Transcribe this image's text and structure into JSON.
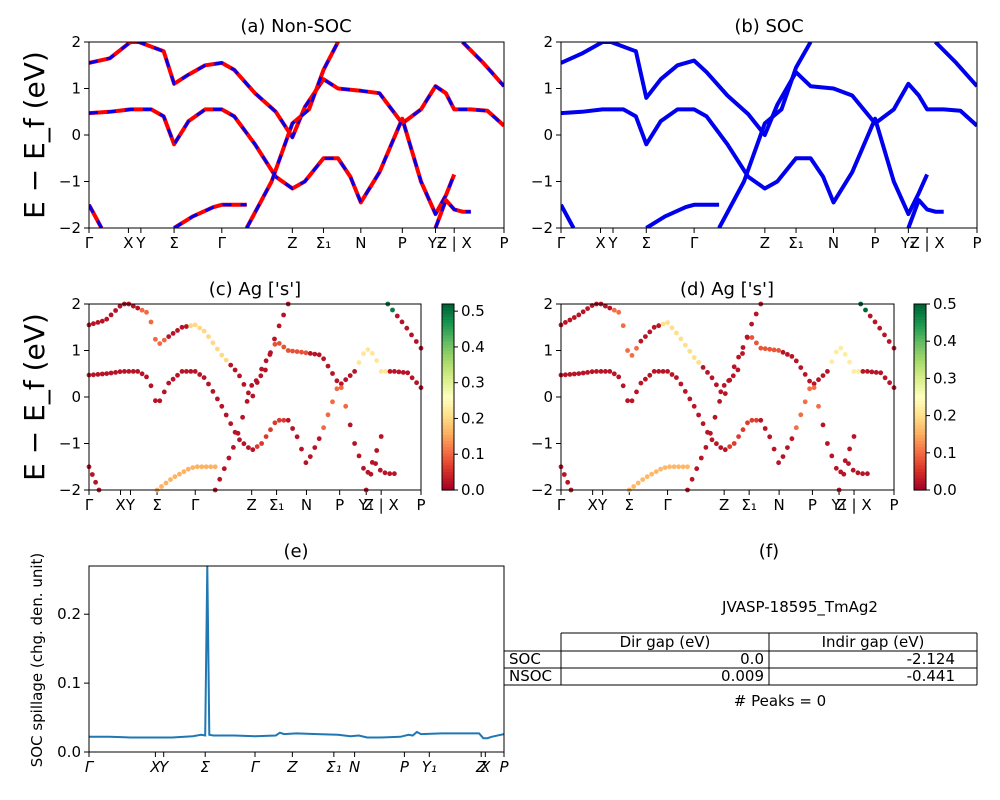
{
  "figure_id": "JVASP-18595_TmAg2",
  "ylabel_band": "E − E_f (eV)",
  "colors": {
    "nonsoc_line": "#ff0000",
    "soc_line": "#0000ee",
    "spillage_line": "#1f77b4",
    "cmap": [
      "#a50026",
      "#d73027",
      "#f46d43",
      "#fdae61",
      "#fee08b",
      "#ffffbf",
      "#d9ef8b",
      "#a6d96a",
      "#66bd63",
      "#1a9850",
      "#006837"
    ]
  },
  "kpath_labels": [
    "Γ",
    "X",
    "Y",
    "Σ",
    "Γ",
    "Z",
    "Σ₁",
    "N",
    "P",
    "Y₁",
    "Z | X",
    "P"
  ],
  "kpath_positions": [
    0,
    0.095,
    0.125,
    0.205,
    0.32,
    0.49,
    0.565,
    0.655,
    0.755,
    0.835,
    0.88,
    1.0
  ],
  "spillage_labels": [
    "Γ",
    "X",
    "Y",
    "Σ",
    "Γ",
    "Z",
    "Σ₁",
    "N",
    "P",
    "Y₁",
    "Z",
    "X",
    "P"
  ],
  "spillage_label_positions": [
    0,
    0.16,
    0.18,
    0.28,
    0.4,
    0.49,
    0.59,
    0.64,
    0.76,
    0.82,
    0.945,
    0.955,
    1.0
  ],
  "chart_data": [
    {
      "id": "a",
      "type": "line",
      "title": "(a) Non-SOC",
      "xlabel": "",
      "ylabel": "E − E_f (eV)",
      "ylim": [
        -2,
        2
      ],
      "yticks": [
        -2,
        -1,
        0,
        1,
        2
      ],
      "note": "Band structure; red solid (spin up) with blue dashed overlay (spin down)",
      "series": [
        {
          "name": "band1",
          "points": [
            [
              0,
              1.55
            ],
            [
              0.05,
              1.65
            ],
            [
              0.1,
              2.0
            ],
            [
              0.12,
              2.0
            ],
            [
              0.18,
              1.8
            ],
            [
              0.205,
              1.1
            ],
            [
              0.24,
              1.3
            ],
            [
              0.28,
              1.5
            ],
            [
              0.32,
              1.55
            ],
            [
              0.35,
              1.4
            ],
            [
              0.4,
              0.9
            ],
            [
              0.45,
              0.5
            ],
            [
              0.49,
              -0.05
            ],
            [
              0.52,
              0.6
            ],
            [
              0.565,
              1.2
            ],
            [
              0.6,
              1.0
            ],
            [
              0.655,
              0.95
            ],
            [
              0.7,
              0.9
            ],
            [
              0.755,
              0.25
            ],
            [
              0.8,
              0.55
            ],
            [
              0.835,
              1.05
            ],
            [
              0.86,
              0.9
            ],
            [
              0.88,
              0.55
            ],
            [
              0.92,
              0.55
            ],
            [
              0.96,
              0.52
            ],
            [
              1.0,
              0.2
            ]
          ]
        },
        {
          "name": "band2",
          "points": [
            [
              0,
              0.47
            ],
            [
              0.05,
              0.5
            ],
            [
              0.1,
              0.55
            ],
            [
              0.15,
              0.55
            ],
            [
              0.18,
              0.4
            ],
            [
              0.205,
              -0.2
            ],
            [
              0.24,
              0.3
            ],
            [
              0.28,
              0.55
            ],
            [
              0.32,
              0.55
            ],
            [
              0.35,
              0.4
            ],
            [
              0.4,
              -0.2
            ],
            [
              0.45,
              -0.9
            ],
            [
              0.49,
              -1.15
            ],
            [
              0.52,
              -1.0
            ],
            [
              0.565,
              -0.5
            ],
            [
              0.6,
              -0.5
            ],
            [
              0.63,
              -0.9
            ],
            [
              0.655,
              -1.45
            ],
            [
              0.7,
              -0.8
            ],
            [
              0.755,
              0.35
            ],
            [
              0.8,
              -1.0
            ],
            [
              0.835,
              -1.7
            ],
            [
              0.86,
              -1.3
            ],
            [
              0.88,
              -0.85
            ]
          ]
        },
        {
          "name": "band3",
          "points": [
            [
              0,
              -1.5
            ],
            [
              0.03,
              -2.0
            ]
          ]
        },
        {
          "name": "band4",
          "points": [
            [
              0.205,
              -2.0
            ],
            [
              0.25,
              -1.75
            ],
            [
              0.3,
              -1.55
            ],
            [
              0.32,
              -1.5
            ],
            [
              0.35,
              -1.5
            ],
            [
              0.38,
              -1.5
            ]
          ]
        },
        {
          "name": "band5",
          "points": [
            [
              0.38,
              -2.0
            ],
            [
              0.44,
              -1.0
            ],
            [
              0.49,
              0.25
            ],
            [
              0.53,
              0.55
            ],
            [
              0.565,
              1.4
            ],
            [
              0.6,
              2.0
            ]
          ]
        },
        {
          "name": "band6",
          "points": [
            [
              0.835,
              -2.0
            ],
            [
              0.86,
              -1.4
            ],
            [
              0.88,
              -1.6
            ],
            [
              0.9,
              -1.65
            ],
            [
              0.92,
              -1.65
            ]
          ]
        },
        {
          "name": "band7",
          "points": [
            [
              0.9,
              2.0
            ],
            [
              0.95,
              1.55
            ],
            [
              1.0,
              1.05
            ]
          ]
        }
      ]
    },
    {
      "id": "b",
      "type": "line",
      "title": "(b) SOC",
      "xlabel": "",
      "ylabel": "",
      "ylim": [
        -2,
        2
      ],
      "yticks": [
        -2,
        -1,
        0,
        1,
        2
      ],
      "note": "Band structure with spin-orbit coupling (blue)",
      "series": [
        {
          "name": "band1",
          "points": [
            [
              0,
              1.55
            ],
            [
              0.05,
              1.75
            ],
            [
              0.1,
              2.0
            ],
            [
              0.12,
              2.0
            ],
            [
              0.18,
              1.8
            ],
            [
              0.205,
              0.8
            ],
            [
              0.24,
              1.2
            ],
            [
              0.28,
              1.5
            ],
            [
              0.32,
              1.6
            ],
            [
              0.35,
              1.35
            ],
            [
              0.4,
              0.85
            ],
            [
              0.45,
              0.45
            ],
            [
              0.49,
              0.0
            ],
            [
              0.52,
              0.65
            ],
            [
              0.565,
              1.35
            ],
            [
              0.6,
              1.05
            ],
            [
              0.655,
              1.0
            ],
            [
              0.7,
              0.85
            ],
            [
              0.755,
              0.25
            ],
            [
              0.8,
              0.55
            ],
            [
              0.835,
              1.1
            ],
            [
              0.86,
              0.85
            ],
            [
              0.88,
              0.55
            ],
            [
              0.92,
              0.55
            ],
            [
              0.96,
              0.52
            ],
            [
              1.0,
              0.2
            ]
          ]
        },
        {
          "name": "band2",
          "points": [
            [
              0,
              0.47
            ],
            [
              0.05,
              0.5
            ],
            [
              0.1,
              0.55
            ],
            [
              0.15,
              0.55
            ],
            [
              0.18,
              0.4
            ],
            [
              0.205,
              -0.2
            ],
            [
              0.24,
              0.3
            ],
            [
              0.28,
              0.55
            ],
            [
              0.32,
              0.55
            ],
            [
              0.35,
              0.4
            ],
            [
              0.4,
              -0.2
            ],
            [
              0.45,
              -0.9
            ],
            [
              0.49,
              -1.15
            ],
            [
              0.52,
              -1.0
            ],
            [
              0.565,
              -0.5
            ],
            [
              0.6,
              -0.5
            ],
            [
              0.63,
              -0.9
            ],
            [
              0.655,
              -1.45
            ],
            [
              0.7,
              -0.8
            ],
            [
              0.755,
              0.35
            ],
            [
              0.8,
              -1.0
            ],
            [
              0.835,
              -1.7
            ],
            [
              0.86,
              -1.25
            ],
            [
              0.88,
              -0.85
            ]
          ]
        },
        {
          "name": "band3",
          "points": [
            [
              0,
              -1.5
            ],
            [
              0.03,
              -2.0
            ]
          ]
        },
        {
          "name": "band4",
          "points": [
            [
              0.205,
              -2.0
            ],
            [
              0.25,
              -1.75
            ],
            [
              0.3,
              -1.55
            ],
            [
              0.32,
              -1.5
            ],
            [
              0.35,
              -1.5
            ],
            [
              0.38,
              -1.5
            ]
          ]
        },
        {
          "name": "band5",
          "points": [
            [
              0.38,
              -2.0
            ],
            [
              0.44,
              -1.0
            ],
            [
              0.49,
              0.25
            ],
            [
              0.53,
              0.55
            ],
            [
              0.565,
              1.45
            ],
            [
              0.6,
              2.0
            ]
          ]
        },
        {
          "name": "band6",
          "points": [
            [
              0.835,
              -2.0
            ],
            [
              0.86,
              -1.4
            ],
            [
              0.88,
              -1.6
            ],
            [
              0.9,
              -1.65
            ],
            [
              0.92,
              -1.65
            ]
          ]
        },
        {
          "name": "band7",
          "points": [
            [
              0.9,
              2.0
            ],
            [
              0.95,
              1.55
            ],
            [
              1.0,
              1.05
            ]
          ]
        }
      ]
    },
    {
      "id": "c",
      "type": "scatter",
      "title": "(c)  Ag ['s']",
      "xlabel": "",
      "ylabel": "E − E_f (eV)",
      "ylim": [
        -2,
        2
      ],
      "yticks": [
        -2,
        -1,
        0,
        1,
        2
      ],
      "colorbar": {
        "min": 0.0,
        "max": 0.52,
        "ticks": [
          0.0,
          0.1,
          0.2,
          0.3,
          0.4,
          0.5
        ]
      },
      "note": "Orbital-projected band weights, color = projection"
    },
    {
      "id": "d",
      "type": "scatter",
      "title": "(d) Ag ['s']",
      "xlabel": "",
      "ylabel": "",
      "ylim": [
        -2,
        2
      ],
      "yticks": [
        -2,
        -1,
        0,
        1,
        2
      ],
      "colorbar": {
        "min": 0.0,
        "max": 0.5,
        "ticks": [
          0.0,
          0.1,
          0.2,
          0.3,
          0.4,
          0.5
        ]
      },
      "note": "Orbital-projected band weights with SOC"
    },
    {
      "id": "e",
      "type": "line",
      "title": "(e)",
      "xlabel": "",
      "ylabel": "SOC spillage (chg. den. unit)",
      "ylim": [
        0,
        0.27
      ],
      "yticks": [
        0.0,
        0.1,
        0.2
      ],
      "series": [
        {
          "name": "spillage",
          "points": [
            [
              0,
              0.022
            ],
            [
              0.05,
              0.022
            ],
            [
              0.1,
              0.021
            ],
            [
              0.15,
              0.021
            ],
            [
              0.2,
              0.021
            ],
            [
              0.25,
              0.023
            ],
            [
              0.27,
              0.025
            ],
            [
              0.28,
              0.024
            ],
            [
              0.285,
              0.27
            ],
            [
              0.29,
              0.025
            ],
            [
              0.3,
              0.024
            ],
            [
              0.35,
              0.024
            ],
            [
              0.4,
              0.023
            ],
            [
              0.45,
              0.024
            ],
            [
              0.46,
              0.028
            ],
            [
              0.47,
              0.026
            ],
            [
              0.5,
              0.027
            ],
            [
              0.55,
              0.026
            ],
            [
              0.6,
              0.025
            ],
            [
              0.63,
              0.023
            ],
            [
              0.65,
              0.024
            ],
            [
              0.67,
              0.021
            ],
            [
              0.7,
              0.021
            ],
            [
              0.75,
              0.022
            ],
            [
              0.77,
              0.025
            ],
            [
              0.78,
              0.024
            ],
            [
              0.79,
              0.029
            ],
            [
              0.8,
              0.026
            ],
            [
              0.85,
              0.027
            ],
            [
              0.9,
              0.027
            ],
            [
              0.94,
              0.027
            ],
            [
              0.95,
              0.02
            ],
            [
              0.96,
              0.02
            ],
            [
              0.97,
              0.022
            ],
            [
              1.0,
              0.026
            ]
          ]
        }
      ]
    }
  ],
  "panel_f": {
    "title": "(f)",
    "caption": "JVASP-18595_TmAg2",
    "table": {
      "headers": [
        "",
        "Dir gap (eV)",
        "Indir gap (eV)"
      ],
      "rows": [
        {
          "label": "SOC",
          "dir": "0.0",
          "indir": "-2.124"
        },
        {
          "label": "NSOC",
          "dir": "0.009",
          "indir": "-0.441"
        }
      ]
    },
    "peaks": "# Peaks = 0"
  }
}
